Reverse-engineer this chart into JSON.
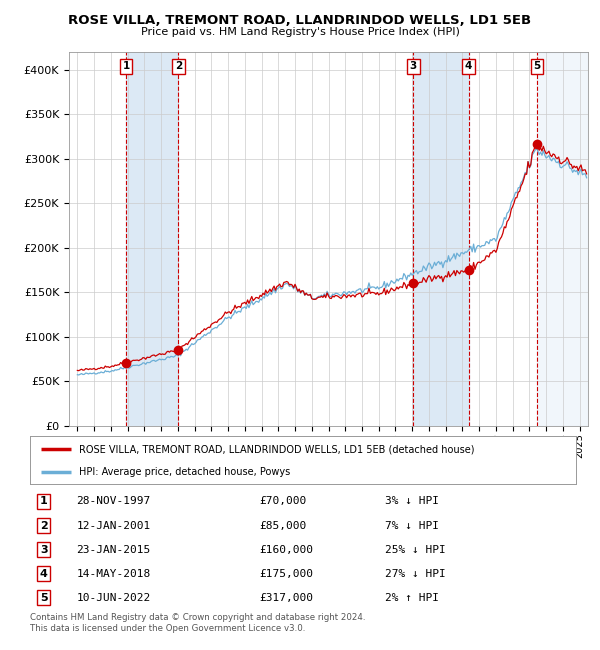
{
  "title": "ROSE VILLA, TREMONT ROAD, LLANDRINDOD WELLS, LD1 5EB",
  "subtitle": "Price paid vs. HM Land Registry's House Price Index (HPI)",
  "legend_line1": "ROSE VILLA, TREMONT ROAD, LLANDRINDOD WELLS, LD1 5EB (detached house)",
  "legend_line2": "HPI: Average price, detached house, Powys",
  "footer1": "Contains HM Land Registry data © Crown copyright and database right 2024.",
  "footer2": "This data is licensed under the Open Government Licence v3.0.",
  "transactions": [
    {
      "num": 1,
      "date": "28-NOV-1997",
      "price": 70000,
      "pct": "3%",
      "dir": "↓",
      "year": 1997.91
    },
    {
      "num": 2,
      "date": "12-JAN-2001",
      "price": 85000,
      "pct": "7%",
      "dir": "↓",
      "year": 2001.04
    },
    {
      "num": 3,
      "date": "23-JAN-2015",
      "price": 160000,
      "pct": "25%",
      "dir": "↓",
      "year": 2015.07
    },
    {
      "num": 4,
      "date": "14-MAY-2018",
      "price": 175000,
      "pct": "27%",
      "dir": "↓",
      "year": 2018.37
    },
    {
      "num": 5,
      "date": "10-JUN-2022",
      "price": 317000,
      "pct": "2%",
      "dir": "↑",
      "year": 2022.44
    }
  ],
  "hpi_color": "#6baed6",
  "price_color": "#cc0000",
  "dot_color": "#cc0000",
  "shade_color": "#dce9f5",
  "vline_color": "#cc0000",
  "grid_color": "#cccccc",
  "ylim": [
    0,
    420000
  ],
  "yticks": [
    0,
    50000,
    100000,
    150000,
    200000,
    250000,
    300000,
    350000,
    400000
  ],
  "xlim_start": 1994.5,
  "xlim_end": 2025.5,
  "background_color": "#ffffff"
}
